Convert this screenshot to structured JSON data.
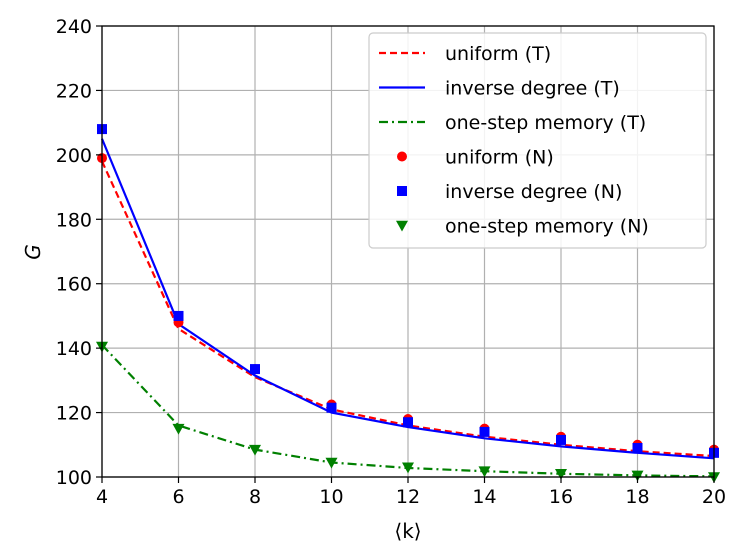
{
  "chart_data": {
    "type": "line",
    "xlabel": "⟨k⟩",
    "ylabel": "G",
    "xlim": [
      4,
      20
    ],
    "ylim": [
      100,
      240
    ],
    "xticks": [
      4,
      6,
      8,
      10,
      12,
      14,
      16,
      18,
      20
    ],
    "yticks": [
      100,
      120,
      140,
      160,
      180,
      200,
      220,
      240
    ],
    "grid": true,
    "legend_position": "top-right",
    "x": [
      4,
      6,
      8,
      10,
      12,
      14,
      16,
      18,
      20
    ],
    "series": [
      {
        "name": "uniform (T)",
        "kind": "line",
        "dash": "dashed",
        "color": "#ff0000",
        "values": [
          198,
          146,
          131,
          121,
          116,
          112.5,
          110,
          108,
          106.5
        ]
      },
      {
        "name": "inverse degree (T)",
        "kind": "line",
        "dash": "solid",
        "color": "#0000ff",
        "values": [
          205,
          147.5,
          131.5,
          120,
          115.5,
          112,
          109.5,
          107.5,
          105.8
        ]
      },
      {
        "name": "one-step memory (T)",
        "kind": "line",
        "dash": "dashdot",
        "color": "#008000",
        "values": [
          141,
          116,
          108.5,
          104.5,
          102.8,
          101.8,
          101,
          100.5,
          100.2
        ]
      },
      {
        "name": "uniform (N)",
        "kind": "marker",
        "marker": "circle",
        "color": "#ff0000",
        "values": [
          199,
          148,
          133.5,
          122.5,
          118,
          115,
          112.5,
          110,
          108.5
        ]
      },
      {
        "name": "inverse degree (N)",
        "kind": "marker",
        "marker": "square",
        "color": "#0000ff",
        "values": [
          208,
          150,
          133.5,
          121.5,
          117,
          114,
          111.5,
          109,
          107.5
        ]
      },
      {
        "name": "one-step memory (N)",
        "kind": "marker",
        "marker": "triangle-down",
        "color": "#008000",
        "values": [
          140.5,
          115,
          108.5,
          104.5,
          103,
          101.8,
          101,
          100.5,
          100
        ]
      }
    ]
  }
}
